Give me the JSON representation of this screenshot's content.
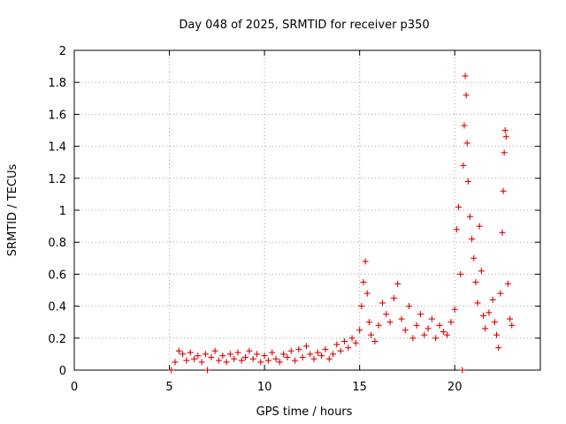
{
  "chart_data": {
    "type": "scatter",
    "title": "Day 048 of 2025, SRMTID for receiver p350",
    "xlabel": "GPS time / hours",
    "ylabel": "SRMTID / TECUs",
    "xlim": [
      0,
      24.5
    ],
    "ylim": [
      0,
      2
    ],
    "x_ticks": [
      0,
      5,
      10,
      15,
      20
    ],
    "y_ticks": [
      0,
      0.2,
      0.4,
      0.6,
      0.8,
      1,
      1.2,
      1.4,
      1.6,
      1.8,
      2
    ],
    "x_tick_labels": [
      "0",
      "5",
      "10",
      "15",
      "20"
    ],
    "y_tick_labels": [
      "0",
      "0.2",
      "0.4",
      "0.6",
      "0.8",
      "1",
      "1.2",
      "1.4",
      "1.6",
      "1.8",
      "2"
    ],
    "grid": true,
    "marker": "+",
    "color": "#e00000",
    "series": [
      {
        "name": "p350",
        "points": [
          [
            5.1,
            0.0
          ],
          [
            5.3,
            0.05
          ],
          [
            5.5,
            0.12
          ],
          [
            5.7,
            0.1
          ],
          [
            5.9,
            0.06
          ],
          [
            6.1,
            0.11
          ],
          [
            6.3,
            0.07
          ],
          [
            6.5,
            0.09
          ],
          [
            6.7,
            0.05
          ],
          [
            6.9,
            0.1
          ],
          [
            7.0,
            0.0
          ],
          [
            7.2,
            0.08
          ],
          [
            7.4,
            0.12
          ],
          [
            7.6,
            0.06
          ],
          [
            7.8,
            0.09
          ],
          [
            8.0,
            0.05
          ],
          [
            8.2,
            0.1
          ],
          [
            8.4,
            0.07
          ],
          [
            8.6,
            0.11
          ],
          [
            8.8,
            0.06
          ],
          [
            9.0,
            0.08
          ],
          [
            9.2,
            0.12
          ],
          [
            9.4,
            0.07
          ],
          [
            9.6,
            0.1
          ],
          [
            9.8,
            0.05
          ],
          [
            10.0,
            0.09
          ],
          [
            10.2,
            0.06
          ],
          [
            10.4,
            0.11
          ],
          [
            10.6,
            0.07
          ],
          [
            10.8,
            0.05
          ],
          [
            11.0,
            0.1
          ],
          [
            11.2,
            0.08
          ],
          [
            11.4,
            0.12
          ],
          [
            11.6,
            0.06
          ],
          [
            11.8,
            0.13
          ],
          [
            12.0,
            0.08
          ],
          [
            12.2,
            0.15
          ],
          [
            12.4,
            0.1
          ],
          [
            12.6,
            0.07
          ],
          [
            12.8,
            0.11
          ],
          [
            13.0,
            0.09
          ],
          [
            13.2,
            0.13
          ],
          [
            13.4,
            0.07
          ],
          [
            13.6,
            0.1
          ],
          [
            13.8,
            0.16
          ],
          [
            14.0,
            0.12
          ],
          [
            14.2,
            0.18
          ],
          [
            14.4,
            0.14
          ],
          [
            14.6,
            0.2
          ],
          [
            14.8,
            0.17
          ],
          [
            15.0,
            0.25
          ],
          [
            15.1,
            0.4
          ],
          [
            15.2,
            0.55
          ],
          [
            15.3,
            0.68
          ],
          [
            15.4,
            0.48
          ],
          [
            15.5,
            0.3
          ],
          [
            15.6,
            0.22
          ],
          [
            15.8,
            0.18
          ],
          [
            16.0,
            0.28
          ],
          [
            16.2,
            0.42
          ],
          [
            16.4,
            0.35
          ],
          [
            16.6,
            0.3
          ],
          [
            16.8,
            0.45
          ],
          [
            17.0,
            0.54
          ],
          [
            17.2,
            0.32
          ],
          [
            17.4,
            0.25
          ],
          [
            17.6,
            0.4
          ],
          [
            17.8,
            0.2
          ],
          [
            18.0,
            0.28
          ],
          [
            18.2,
            0.35
          ],
          [
            18.4,
            0.22
          ],
          [
            18.6,
            0.26
          ],
          [
            18.8,
            0.32
          ],
          [
            19.0,
            0.2
          ],
          [
            19.2,
            0.28
          ],
          [
            19.4,
            0.24
          ],
          [
            19.6,
            0.22
          ],
          [
            19.8,
            0.3
          ],
          [
            20.0,
            0.38
          ],
          [
            20.1,
            0.88
          ],
          [
            20.2,
            1.02
          ],
          [
            20.3,
            0.6
          ],
          [
            20.4,
            0.0
          ],
          [
            20.45,
            1.28
          ],
          [
            20.5,
            1.53
          ],
          [
            20.55,
            1.84
          ],
          [
            20.6,
            1.72
          ],
          [
            20.65,
            1.42
          ],
          [
            20.7,
            1.18
          ],
          [
            20.8,
            0.96
          ],
          [
            20.9,
            0.82
          ],
          [
            21.0,
            0.7
          ],
          [
            21.1,
            0.55
          ],
          [
            21.2,
            0.42
          ],
          [
            21.3,
            0.9
          ],
          [
            21.4,
            0.62
          ],
          [
            21.5,
            0.34
          ],
          [
            21.6,
            0.26
          ],
          [
            21.8,
            0.36
          ],
          [
            22.0,
            0.44
          ],
          [
            22.1,
            0.3
          ],
          [
            22.2,
            0.22
          ],
          [
            22.3,
            0.14
          ],
          [
            22.4,
            0.48
          ],
          [
            22.5,
            0.86
          ],
          [
            22.55,
            1.12
          ],
          [
            22.6,
            1.36
          ],
          [
            22.65,
            1.5
          ],
          [
            22.7,
            1.46
          ],
          [
            22.8,
            0.54
          ],
          [
            22.9,
            0.32
          ],
          [
            23.0,
            0.28
          ]
        ]
      }
    ]
  }
}
